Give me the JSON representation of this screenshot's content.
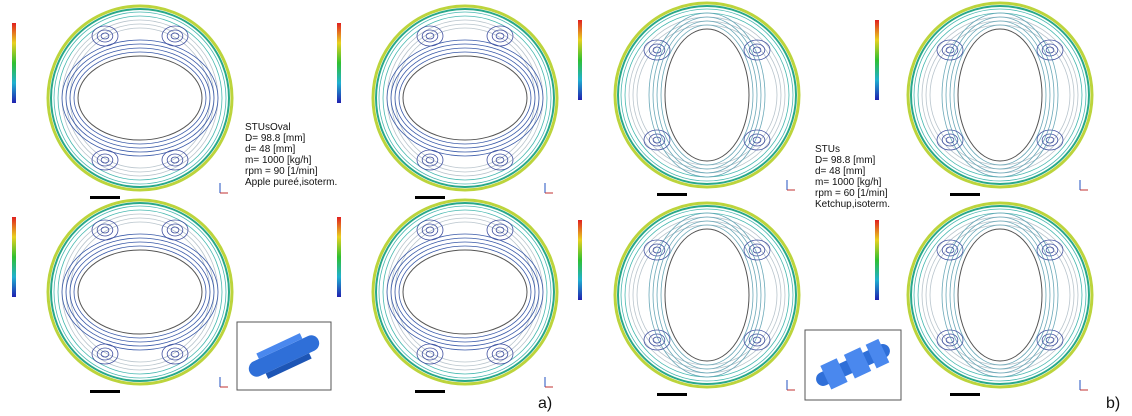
{
  "panels": [
    {
      "label": "a)",
      "caption": [
        "STUsOval",
        "D= 98.8 [mm]",
        "d= 48 [mm]",
        "m= 1000 [kg/h]",
        "rpm = 90 [1/min]",
        "Apple pureé,isoterm."
      ]
    },
    {
      "label": "b)",
      "caption": [
        "STUs",
        "D= 98.8 [mm]",
        "d= 48 [mm]",
        "m= 1000 [kg/h]",
        "rpm = 60 [1/min]",
        "Ketchup,isoterm."
      ]
    }
  ]
}
